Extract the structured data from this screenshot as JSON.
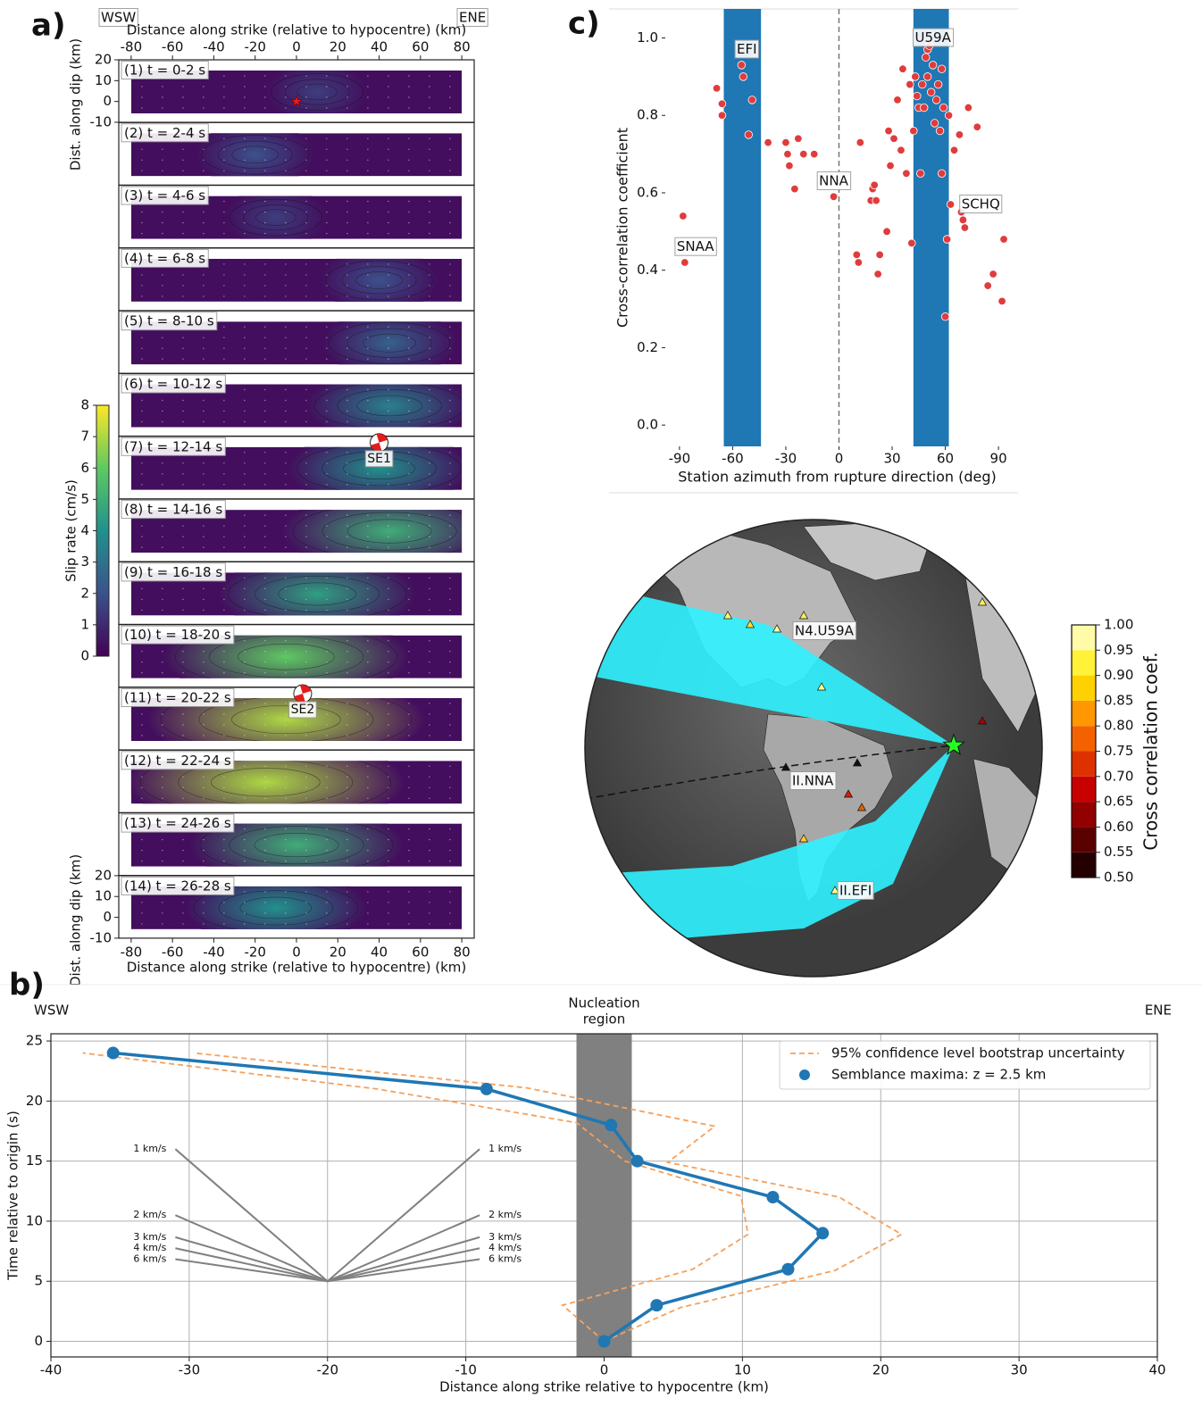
{
  "chart_data": [
    {
      "type": "slip-snapshots",
      "panel_label": "a)",
      "direction_labels": [
        "WSW",
        "ENE"
      ],
      "xlabel": "Distance along strike (relative to hypocentre) (km)",
      "ylabel": "Dist. along dip (km)",
      "xlim": [
        -86,
        86
      ],
      "xticks": [
        -80,
        -60,
        -40,
        -20,
        0,
        20,
        40,
        60,
        80
      ],
      "ylim": [
        -10,
        20
      ],
      "yticks": [
        -10,
        0,
        10,
        20
      ],
      "panels": [
        {
          "label": "(1) t = 0-2 s",
          "peak": 1.5,
          "peak_x": 10,
          "hypocentre": {
            "x": 0,
            "dip": 0
          }
        },
        {
          "label": "(2) t = 2-4 s",
          "peak": 2,
          "peak_x": -20
        },
        {
          "label": "(3) t = 4-6 s",
          "peak": 1.5,
          "peak_x": -10
        },
        {
          "label": "(4) t = 6-8 s",
          "peak": 2,
          "peak_x": 40
        },
        {
          "label": "(5) t = 8-10 s",
          "peak": 2.5,
          "peak_x": 45
        },
        {
          "label": "(6) t = 10-12 s",
          "peak": 3.5,
          "peak_x": 45
        },
        {
          "label": "(7) t = 12-14 s",
          "peak": 4,
          "peak_x": 40,
          "subevent": {
            "label": "SE1",
            "x": 40,
            "dip": 5
          }
        },
        {
          "label": "(8) t = 14-16 s",
          "peak": 5,
          "peak_x": 45
        },
        {
          "label": "(9) t = 16-18 s",
          "peak": 4.5,
          "peak_x": 10
        },
        {
          "label": "(10) t = 18-20 s",
          "peak": 6,
          "peak_x": -5
        },
        {
          "label": "(11) t = 20-22 s",
          "peak": 7,
          "peak_x": -5,
          "subevent": {
            "label": "SE2",
            "x": 3,
            "dip": 5
          }
        },
        {
          "label": "(12) t = 22-24 s",
          "peak": 7,
          "peak_x": -15
        },
        {
          "label": "(13) t = 24-26 s",
          "peak": 5,
          "peak_x": 0
        },
        {
          "label": "(14) t = 26-28 s",
          "peak": 4,
          "peak_x": -10
        }
      ],
      "colorbar": {
        "label": "Slip rate (cm/s)",
        "lim": [
          0,
          8
        ],
        "ticks": [
          0,
          1,
          2,
          3,
          4,
          5,
          6,
          7,
          8
        ]
      }
    },
    {
      "type": "line",
      "panel_label": "b)",
      "direction_labels": [
        "WSW",
        "ENE"
      ],
      "xlabel": "Distance along strike relative to hypocentre (km)",
      "ylabel": "Time relative to origin (s)",
      "xlim": [
        -40,
        40
      ],
      "xticks": [
        -40,
        -30,
        -20,
        -10,
        0,
        10,
        20,
        30,
        40
      ],
      "ylim": [
        -1.3,
        25.6
      ],
      "yticks": [
        0,
        5,
        10,
        15,
        20,
        25
      ],
      "grid": true,
      "legend": "upper right",
      "nucleation": {
        "label": [
          "Nucleation",
          "region"
        ],
        "range": [
          -2,
          2
        ],
        "color": "#808080"
      },
      "series": [
        {
          "name": "Semblance maxima: z = 2.5 km",
          "color": "#1f77b4",
          "x": [
            0,
            3.8,
            13.3,
            15.8,
            12.2,
            2.4,
            0.5,
            -8.5,
            -35.5
          ],
          "y": [
            0,
            3,
            6,
            9,
            12,
            15,
            18,
            21,
            24
          ]
        }
      ],
      "uncertainty": {
        "name": "95% confidence level bootstrap uncertainty",
        "color": "#f4a15d",
        "lines": [
          {
            "x": [
              0,
              -3,
              6.4,
              10.4,
              9.9,
              1.5,
              -2,
              -16.4,
              -37.7
            ],
            "y": [
              0,
              3,
              6,
              8.9,
              12.1,
              15,
              18.2,
              21,
              24
            ]
          },
          {
            "x": [
              0,
              5.5,
              16.7,
              21.5,
              17,
              4.6,
              8,
              -5.6,
              -29.7
            ],
            "y": [
              0,
              2.8,
              5.9,
              8.9,
              12,
              14.9,
              17.9,
              21.1,
              24
            ]
          }
        ]
      },
      "velocity_guides": {
        "origin": [
          -20,
          5
        ],
        "half_width": 11,
        "speeds": [
          1,
          2,
          3,
          4,
          6
        ],
        "labels": [
          "1 km/s",
          "2 km/s",
          "3 km/s",
          "4 km/s",
          "6 km/s"
        ],
        "color": "#808080"
      }
    },
    {
      "type": "scatter",
      "panel_label": "c)",
      "xlabel": "Station azimuth from rupture direction (deg)",
      "ylabel": "Cross-correlation coefficient",
      "xlim": [
        -98,
        96
      ],
      "xticks": [
        -90,
        -60,
        -30,
        0,
        30,
        60,
        90
      ],
      "ylim": [
        -0.055,
        1.075
      ],
      "yticks": [
        {
          "value": 0,
          "label": "0.0"
        },
        0.2,
        0.4,
        0.6,
        0.8,
        {
          "value": 1,
          "label": "1.0"
        }
      ],
      "color": "#e03c3c",
      "band_color": "#1f77b4",
      "bands": [
        [
          -65,
          -44
        ],
        [
          42,
          62
        ]
      ],
      "annotations": [
        {
          "text": "SNAA",
          "x": -81,
          "y": 0.46
        },
        {
          "text": "EFI",
          "x": -52,
          "y": 0.97
        },
        {
          "text": "NNA",
          "x": -3,
          "y": 0.63
        },
        {
          "text": "U59A",
          "x": 53,
          "y": 1.0
        },
        {
          "text": "SCHQ",
          "x": 80,
          "y": 0.57
        }
      ],
      "x": [
        -88,
        -87,
        -69,
        -66,
        -66,
        -55,
        -54,
        -51,
        -49,
        -40,
        -30,
        -29,
        -28,
        -25,
        -23,
        -20,
        -14,
        -3,
        10,
        11,
        12,
        18,
        19,
        20,
        21,
        22,
        23,
        27,
        28,
        29,
        31,
        33,
        35,
        36,
        38,
        40,
        41,
        42,
        43,
        44,
        45,
        46,
        47,
        48,
        49,
        50,
        50,
        51,
        52,
        53,
        54,
        55,
        56,
        57,
        58,
        58,
        59,
        60,
        61,
        62,
        63,
        65,
        68,
        69,
        70,
        71,
        73,
        78,
        84,
        87,
        92,
        93
      ],
      "y": [
        0.54,
        0.42,
        0.87,
        0.83,
        0.8,
        0.93,
        0.9,
        0.75,
        0.84,
        0.73,
        0.73,
        0.7,
        0.67,
        0.61,
        0.74,
        0.7,
        0.7,
        0.59,
        0.44,
        0.42,
        0.73,
        0.58,
        0.61,
        0.62,
        0.58,
        0.39,
        0.44,
        0.5,
        0.76,
        0.67,
        0.74,
        0.84,
        0.71,
        0.92,
        0.65,
        0.88,
        0.47,
        0.76,
        0.9,
        0.85,
        0.82,
        0.65,
        0.88,
        0.82,
        0.95,
        0.97,
        0.9,
        0.98,
        0.86,
        0.93,
        0.78,
        0.84,
        0.88,
        0.76,
        0.65,
        0.92,
        0.82,
        0.28,
        0.48,
        0.8,
        0.57,
        0.71,
        0.75,
        0.55,
        0.53,
        0.51,
        0.82,
        0.77,
        0.36,
        0.39,
        0.32,
        0.48
      ]
    },
    {
      "type": "map",
      "station_labels": [
        "N4.U59A",
        "II.NNA",
        "II.EFI"
      ],
      "colorbar": {
        "label": "Cross correlation coef.",
        "lim": [
          0.5,
          1.0
        ],
        "ticks": [
          {
            "value": 0.5,
            "label": "0.50"
          },
          {
            "value": 0.55,
            "label": "0.55"
          },
          {
            "value": 0.6,
            "label": "0.60"
          },
          {
            "value": 0.65,
            "label": "0.65"
          },
          {
            "value": 0.7,
            "label": "0.70"
          },
          {
            "value": 0.75,
            "label": "0.75"
          },
          {
            "value": 0.8,
            "label": "0.80"
          },
          {
            "value": 0.85,
            "label": "0.85"
          },
          {
            "value": 0.9,
            "label": "0.90"
          },
          {
            "value": 0.95,
            "label": "0.95"
          },
          {
            "value": 1.0,
            "label": "1.00"
          }
        ]
      }
    }
  ]
}
